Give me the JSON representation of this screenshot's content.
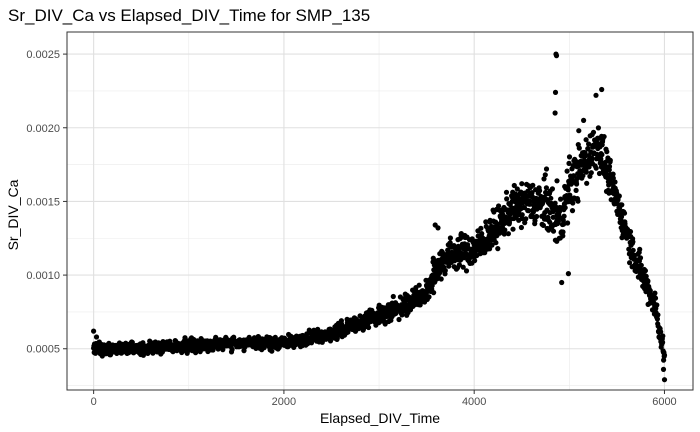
{
  "chart_data": {
    "type": "scatter",
    "title": "Sr_DIV_Ca vs Elapsed_DIV_Time for SMP_135",
    "xlabel": "Elapsed_DIV_Time",
    "ylabel": "Sr_DIV_Ca",
    "xlim": [
      -280,
      6300
    ],
    "ylim": [
      0.00022,
      0.00265
    ],
    "x_ticks": [
      0,
      2000,
      4000,
      6000
    ],
    "x_tick_labels": [
      "0",
      "2000",
      "4000",
      "6000"
    ],
    "y_ticks": [
      0.0005,
      0.001,
      0.0015,
      0.002,
      0.0025
    ],
    "y_tick_labels": [
      "0.0005",
      "0.0010",
      "0.0015",
      "0.0020",
      "0.0025"
    ],
    "grid": true,
    "legend": "none",
    "point_color": "#000000",
    "trend": [
      [
        0,
        0.0005
      ],
      [
        500,
        0.0005
      ],
      [
        1000,
        0.00052
      ],
      [
        1500,
        0.00054
      ],
      [
        2000,
        0.00054
      ],
      [
        2500,
        0.0006
      ],
      [
        2800,
        0.00068
      ],
      [
        3000,
        0.00072
      ],
      [
        3200,
        0.00078
      ],
      [
        3500,
        0.00088
      ],
      [
        3650,
        0.0011
      ],
      [
        3800,
        0.00115
      ],
      [
        4000,
        0.00117
      ],
      [
        4200,
        0.0013
      ],
      [
        4400,
        0.00145
      ],
      [
        4600,
        0.0015
      ],
      [
        4800,
        0.00145
      ],
      [
        4900,
        0.00135
      ],
      [
        5000,
        0.0016
      ],
      [
        5200,
        0.0018
      ],
      [
        5300,
        0.0019
      ],
      [
        5400,
        0.0017
      ],
      [
        5500,
        0.0015
      ],
      [
        5600,
        0.0013
      ],
      [
        5700,
        0.0011
      ],
      [
        5800,
        0.00095
      ],
      [
        5900,
        0.0008
      ],
      [
        6000,
        0.00045
      ]
    ],
    "noise": [
      [
        0,
        4e-05
      ],
      [
        2000,
        4e-05
      ],
      [
        3000,
        6e-05
      ],
      [
        3500,
        8e-05
      ],
      [
        3700,
        0.00011
      ],
      [
        4300,
        0.00012
      ],
      [
        4600,
        0.00015
      ],
      [
        5000,
        0.00018
      ],
      [
        5300,
        0.00015
      ],
      [
        5600,
        0.00012
      ],
      [
        6000,
        8e-05
      ]
    ],
    "n_points": 2100,
    "extra_points": [
      [
        4860,
        0.0025
      ],
      [
        4865,
        0.00249
      ],
      [
        4855,
        0.00224
      ],
      [
        4850,
        0.0021
      ],
      [
        5340,
        0.00226
      ],
      [
        5280,
        0.00222
      ],
      [
        4920,
        0.00095
      ],
      [
        4990,
        0.00101
      ],
      [
        6000,
        0.00029
      ],
      [
        5990,
        0.00036
      ],
      [
        0,
        0.00062
      ],
      [
        30,
        0.00058
      ],
      [
        4400,
        0.0015
      ],
      [
        4500,
        0.00162
      ],
      [
        3590,
        0.00134
      ],
      [
        3620,
        0.00132
      ],
      [
        4760,
        0.00172
      ],
      [
        4870,
        0.00164
      ],
      [
        5150,
        0.00205
      ],
      [
        5100,
        0.00198
      ]
    ]
  }
}
